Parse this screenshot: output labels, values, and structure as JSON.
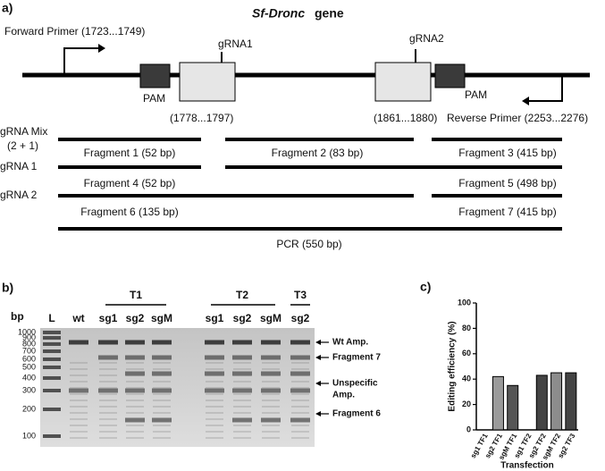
{
  "panel_labels": [
    "a)",
    "b)",
    "c)"
  ],
  "diagram": {
    "title_italic": "Sf-Dronc",
    "title_rest": "gene",
    "forward_primer": "Forward Primer (1723...1749)",
    "reverse_primer": "Reverse Primer (2253...2276)",
    "grna1": "gRNA1",
    "grna2": "gRNA2",
    "pam": [
      "PAM",
      "PAM"
    ],
    "grna1_pos": "(1778...1797)",
    "grna2_pos": "(1861...1880)",
    "row_labels": [
      "gRNA Mix",
      "(2 + 1)",
      "gRNA 1",
      "gRNA 2"
    ],
    "fragments": [
      "Fragment 1 (52 bp)",
      "Fragment 2 (83 bp)",
      "Fragment 3 (415 bp)",
      "Fragment 4 (52 bp)",
      "Fragment 5 (498 bp)",
      "Fragment 6 (135 bp)",
      "Fragment 7 (415 bp)",
      "PCR (550 bp)"
    ]
  },
  "gel": {
    "bp_label": "bp",
    "ladder": [
      "1000",
      "900",
      "800",
      "700",
      "600",
      "500",
      "400",
      "300",
      "200",
      "100"
    ],
    "lanes": [
      "L",
      "wt",
      "sg1",
      "sg2",
      "sgM",
      "sg1",
      "sg2",
      "sgM",
      "sg2"
    ],
    "groups": [
      "T1",
      "T2",
      "T3"
    ],
    "annotations": [
      "Wt Amp.",
      "Fragment 7",
      "Unspecific",
      "Amp.",
      "Fragment 6"
    ]
  },
  "chart_data": {
    "type": "bar",
    "y_label": "Editing efficiency (%)",
    "x_label": "Transfection",
    "categories": [
      "sg1 TF1",
      "sg2 TF1",
      "sgM TF1",
      "sg1 TF2",
      "sg2 TF2",
      "sgM TF2",
      "sg2 TF3"
    ],
    "values": [
      0,
      42,
      35,
      0,
      43,
      45,
      45
    ],
    "colors": [
      "#9a9a9a",
      "#9a9a9a",
      "#555555",
      "#555555",
      "#444444",
      "#8c8c8c",
      "#444444"
    ],
    "ylim": [
      0,
      100
    ],
    "yticks": [
      0,
      20,
      40,
      60,
      80,
      100
    ]
  }
}
